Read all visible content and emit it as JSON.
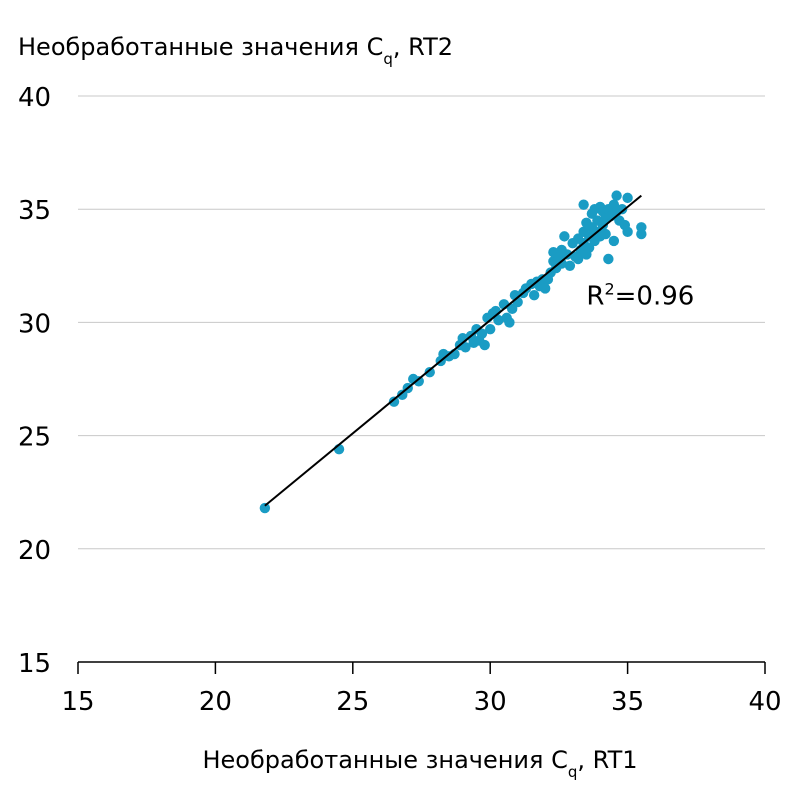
{
  "chart_data": {
    "type": "scatter",
    "ylabel": {
      "main": "Необработанные значения C",
      "sub": "q",
      "suffix": ", RT2"
    },
    "xlabel": {
      "main": "Необработанные значения C",
      "sub": "q",
      "suffix": ", RT1"
    },
    "xlim": [
      15,
      40
    ],
    "ylim": [
      15,
      40
    ],
    "xticks": [
      15,
      20,
      25,
      30,
      35,
      40
    ],
    "yticks": [
      15,
      20,
      25,
      30,
      35,
      40
    ],
    "grid": "horizontal",
    "annotation": {
      "base": "R",
      "sup": "2",
      "rest": "=0.96"
    },
    "annotation_position": {
      "x": 33.5,
      "y": 30.8
    },
    "colors": {
      "points": "#1a9cc4",
      "trendline": "#000000",
      "grid": "#c8c8c8"
    },
    "trendline": {
      "x": [
        21.8,
        35.5
      ],
      "y": [
        21.9,
        35.6
      ]
    },
    "series": [
      {
        "points": [
          [
            21.8,
            21.8
          ],
          [
            24.5,
            24.4
          ],
          [
            26.5,
            26.5
          ],
          [
            26.8,
            26.8
          ],
          [
            27.0,
            27.1
          ],
          [
            27.2,
            27.5
          ],
          [
            27.4,
            27.4
          ],
          [
            27.8,
            27.8
          ],
          [
            28.2,
            28.3
          ],
          [
            28.3,
            28.6
          ],
          [
            28.5,
            28.5
          ],
          [
            28.7,
            28.6
          ],
          [
            28.9,
            29.0
          ],
          [
            29.0,
            29.3
          ],
          [
            29.1,
            28.9
          ],
          [
            29.3,
            29.4
          ],
          [
            29.4,
            29.1
          ],
          [
            29.5,
            29.7
          ],
          [
            29.6,
            29.2
          ],
          [
            29.7,
            29.5
          ],
          [
            29.8,
            29.0
          ],
          [
            29.9,
            30.2
          ],
          [
            30.0,
            29.7
          ],
          [
            30.1,
            30.4
          ],
          [
            30.2,
            30.5
          ],
          [
            30.3,
            30.1
          ],
          [
            30.5,
            30.8
          ],
          [
            30.6,
            30.2
          ],
          [
            30.7,
            30.0
          ],
          [
            30.8,
            30.6
          ],
          [
            30.9,
            31.2
          ],
          [
            31.0,
            30.9
          ],
          [
            31.2,
            31.3
          ],
          [
            31.3,
            31.5
          ],
          [
            31.5,
            31.7
          ],
          [
            31.6,
            31.2
          ],
          [
            31.7,
            31.8
          ],
          [
            31.8,
            31.6
          ],
          [
            31.9,
            31.9
          ],
          [
            32.0,
            31.5
          ],
          [
            32.1,
            31.9
          ],
          [
            32.2,
            32.2
          ],
          [
            32.3,
            32.7
          ],
          [
            32.3,
            33.1
          ],
          [
            32.4,
            32.4
          ],
          [
            32.5,
            32.9
          ],
          [
            32.6,
            33.2
          ],
          [
            32.6,
            32.6
          ],
          [
            32.7,
            33.8
          ],
          [
            32.8,
            33.0
          ],
          [
            32.9,
            32.5
          ],
          [
            33.0,
            33.5
          ],
          [
            33.1,
            32.9
          ],
          [
            33.2,
            33.7
          ],
          [
            33.2,
            32.8
          ],
          [
            33.3,
            33.2
          ],
          [
            33.4,
            34.0
          ],
          [
            33.4,
            33.5
          ],
          [
            33.5,
            33.0
          ],
          [
            33.5,
            34.4
          ],
          [
            33.6,
            33.8
          ],
          [
            33.6,
            33.3
          ],
          [
            33.7,
            34.2
          ],
          [
            33.7,
            34.8
          ],
          [
            33.8,
            33.6
          ],
          [
            33.8,
            35.0
          ],
          [
            33.9,
            34.0
          ],
          [
            33.9,
            34.5
          ],
          [
            34.0,
            33.8
          ],
          [
            34.0,
            35.1
          ],
          [
            34.1,
            34.3
          ],
          [
            34.1,
            34.9
          ],
          [
            34.2,
            34.6
          ],
          [
            34.2,
            33.9
          ],
          [
            34.3,
            35.0
          ],
          [
            34.3,
            32.8
          ],
          [
            34.4,
            34.7
          ],
          [
            34.5,
            35.2
          ],
          [
            34.5,
            33.6
          ],
          [
            34.6,
            34.9
          ],
          [
            34.6,
            35.6
          ],
          [
            34.7,
            34.5
          ],
          [
            34.8,
            35.0
          ],
          [
            34.9,
            34.3
          ],
          [
            35.0,
            34.0
          ],
          [
            35.0,
            35.5
          ],
          [
            35.5,
            34.2
          ],
          [
            35.5,
            33.9
          ],
          [
            33.4,
            35.2
          ]
        ]
      }
    ]
  }
}
